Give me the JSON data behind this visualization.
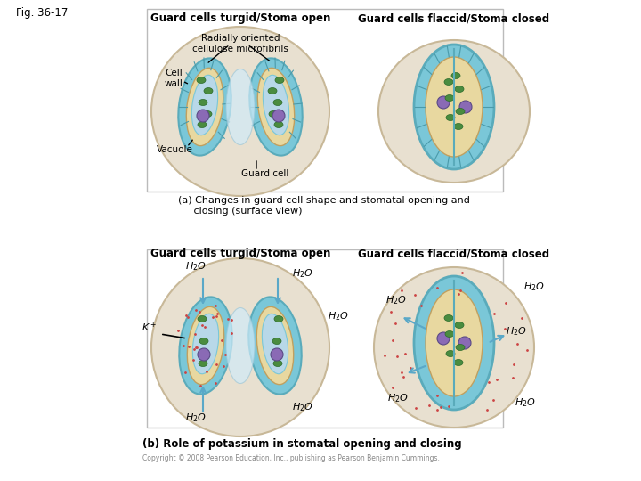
{
  "fig_label": "Fig. 36-17",
  "top_label_left": "Guard cells turgid/Stoma open",
  "top_label_right": "Guard cells flaccid/Stoma closed",
  "mid_label_left": "Guard cells turgid/Stoma open",
  "mid_label_right": "Guard cells flaccid/Stoma closed",
  "annotation_radially": "Radially oriented\ncellulose microfibrils",
  "annotation_cell_wall": "Cell\nwall",
  "annotation_vacuole": "Vacuole",
  "annotation_guard_cell": "Guard cell",
  "caption_a": "(a) Changes in guard cell shape and stomatal opening and\n     closing (surface view)",
  "caption_b": "(b) Role of potassium in stomatal opening and closing",
  "copyright": "Copyright © 2008 Pearson Education, Inc., publishing as Pearson Benjamin Cummings.",
  "bg_color": "#ffffff",
  "cell_bg": "#d4eef5",
  "cell_wall_color": "#7ac7d8",
  "cell_inner_color": "#e8d8a0",
  "chloroplast_color": "#4a8c3f",
  "nucleus_color": "#8a6ab5",
  "vacuole_color": "#b8d8e8",
  "epidermis_color": "#e8e0d0",
  "epidermis_outline": "#c8b898",
  "line_color": "#7ab8c8",
  "arrow_color": "#5aa8c8",
  "text_color": "#000000",
  "dot_color_red": "#cc4444",
  "dot_color_blue": "#4488cc"
}
